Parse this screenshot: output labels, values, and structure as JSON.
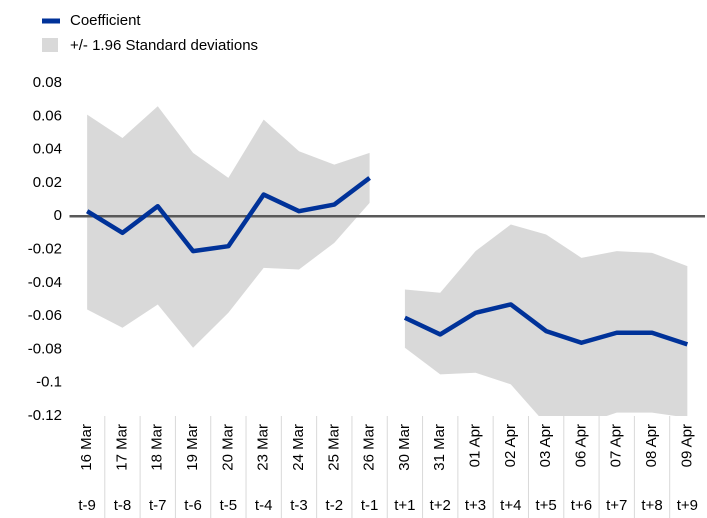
{
  "chart_data": {
    "type": "line",
    "categories": [
      "16 Mar",
      "17 Mar",
      "18 Mar",
      "19 Mar",
      "20 Mar",
      "23 Mar",
      "24 Mar",
      "25 Mar",
      "26 Mar",
      "30 Mar",
      "31 Mar",
      "01 Apr",
      "02 Apr",
      "03 Apr",
      "06 Apr",
      "07 Apr",
      "08 Apr",
      "09 Apr"
    ],
    "periods": [
      "t-9",
      "t-8",
      "t-7",
      "t-6",
      "t-5",
      "t-4",
      "t-3",
      "t-2",
      "t-1",
      "t+1",
      "t+2",
      "t+3",
      "t+4",
      "t+5",
      "t+6",
      "t+7",
      "t+8",
      "t+9"
    ],
    "breaks": [
      9
    ],
    "series": [
      {
        "name": "Coefficient",
        "color": "#003299",
        "values": [
          0.003,
          -0.01,
          0.006,
          -0.021,
          -0.018,
          0.013,
          0.003,
          0.007,
          0.023,
          -0.061,
          -0.071,
          -0.058,
          -0.053,
          -0.069,
          -0.076,
          -0.07,
          -0.07,
          -0.077
        ]
      },
      {
        "name": "+/- 1.96 Standard deviations",
        "color": "#d9d9d9",
        "upper": [
          0.061,
          0.047,
          0.066,
          0.038,
          0.023,
          0.058,
          0.039,
          0.031,
          0.038,
          -0.044,
          -0.046,
          -0.021,
          -0.005,
          -0.011,
          -0.025,
          -0.021,
          -0.022,
          -0.03
        ],
        "lower": [
          -0.056,
          -0.067,
          -0.053,
          -0.079,
          -0.058,
          -0.031,
          -0.032,
          -0.016,
          0.008,
          -0.079,
          -0.095,
          -0.094,
          -0.101,
          -0.125,
          -0.125,
          -0.118,
          -0.118,
          -0.121
        ]
      }
    ],
    "ylim": [
      -0.12,
      0.08
    ],
    "yticks": [
      0.08,
      0.06,
      0.04,
      0.02,
      0,
      -0.02,
      -0.04,
      -0.06,
      -0.08,
      -0.1,
      -0.12
    ],
    "zero_line": true
  }
}
